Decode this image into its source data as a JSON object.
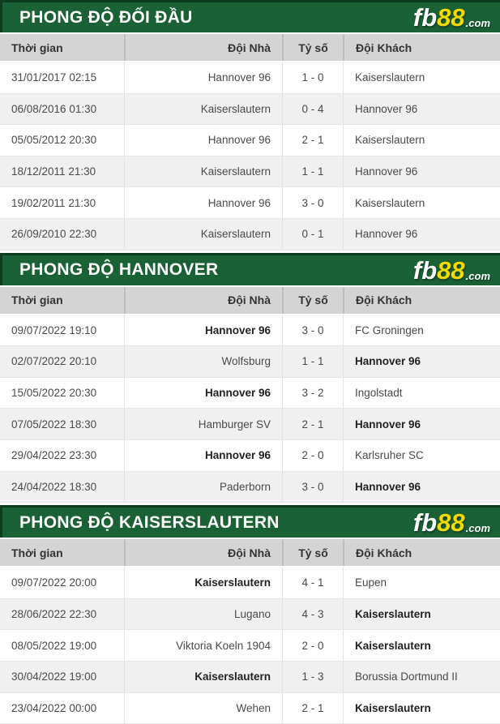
{
  "brand": {
    "logo_fb": "fb",
    "logo_88": "88",
    "logo_com": ".com",
    "green": "#1b6136",
    "green_dark": "#0d3d1f",
    "yellow": "#f3da00"
  },
  "table_header": {
    "time": "Thời gian",
    "home": "Đội Nhà",
    "score": "Tỷ số",
    "away": "Đội Khách"
  },
  "sections": [
    {
      "title": "PHONG ĐỘ ĐỐI ĐẦU",
      "rows": [
        {
          "time": "31/01/2017 02:15",
          "home": "Hannover 96",
          "score": "1 - 0",
          "away": "Kaiserslautern",
          "home_bold": false,
          "away_bold": false
        },
        {
          "time": "06/08/2016 01:30",
          "home": "Kaiserslautern",
          "score": "0 - 4",
          "away": "Hannover 96",
          "home_bold": false,
          "away_bold": false
        },
        {
          "time": "05/05/2012 20:30",
          "home": "Hannover 96",
          "score": "2 - 1",
          "away": "Kaiserslautern",
          "home_bold": false,
          "away_bold": false
        },
        {
          "time": "18/12/2011 21:30",
          "home": "Kaiserslautern",
          "score": "1 - 1",
          "away": "Hannover 96",
          "home_bold": false,
          "away_bold": false
        },
        {
          "time": "19/02/2011 21:30",
          "home": "Hannover 96",
          "score": "3 - 0",
          "away": "Kaiserslautern",
          "home_bold": false,
          "away_bold": false
        },
        {
          "time": "26/09/2010 22:30",
          "home": "Kaiserslautern",
          "score": "0 - 1",
          "away": "Hannover 96",
          "home_bold": false,
          "away_bold": false
        }
      ]
    },
    {
      "title": "PHONG ĐỘ HANNOVER",
      "rows": [
        {
          "time": "09/07/2022 19:10",
          "home": "Hannover 96",
          "score": "3 - 0",
          "away": "FC Groningen",
          "home_bold": true,
          "away_bold": false
        },
        {
          "time": "02/07/2022 20:10",
          "home": "Wolfsburg",
          "score": "1 - 1",
          "away": "Hannover 96",
          "home_bold": false,
          "away_bold": true
        },
        {
          "time": "15/05/2022 20:30",
          "home": "Hannover 96",
          "score": "3 - 2",
          "away": "Ingolstadt",
          "home_bold": true,
          "away_bold": false
        },
        {
          "time": "07/05/2022 18:30",
          "home": "Hamburger SV",
          "score": "2 - 1",
          "away": "Hannover 96",
          "home_bold": false,
          "away_bold": true
        },
        {
          "time": "29/04/2022 23:30",
          "home": "Hannover 96",
          "score": "2 - 0",
          "away": "Karlsruher SC",
          "home_bold": true,
          "away_bold": false
        },
        {
          "time": "24/04/2022 18:30",
          "home": "Paderborn",
          "score": "3 - 0",
          "away": "Hannover 96",
          "home_bold": false,
          "away_bold": true
        }
      ]
    },
    {
      "title": "PHONG ĐỘ KAISERSLAUTERN",
      "rows": [
        {
          "time": "09/07/2022 20:00",
          "home": "Kaiserslautern",
          "score": "4 - 1",
          "away": "Eupen",
          "home_bold": true,
          "away_bold": false
        },
        {
          "time": "28/06/2022 22:30",
          "home": "Lugano",
          "score": "4 - 3",
          "away": "Kaiserslautern",
          "home_bold": false,
          "away_bold": true
        },
        {
          "time": "08/05/2022 19:00",
          "home": "Viktoria Koeln 1904",
          "score": "2 - 0",
          "away": "Kaiserslautern",
          "home_bold": false,
          "away_bold": true
        },
        {
          "time": "30/04/2022 19:00",
          "home": "Kaiserslautern",
          "score": "1 - 3",
          "away": "Borussia Dortmund II",
          "home_bold": true,
          "away_bold": false
        },
        {
          "time": "23/04/2022 00:00",
          "home": "Wehen",
          "score": "2 - 1",
          "away": "Kaiserslautern",
          "home_bold": false,
          "away_bold": true
        }
      ]
    }
  ]
}
